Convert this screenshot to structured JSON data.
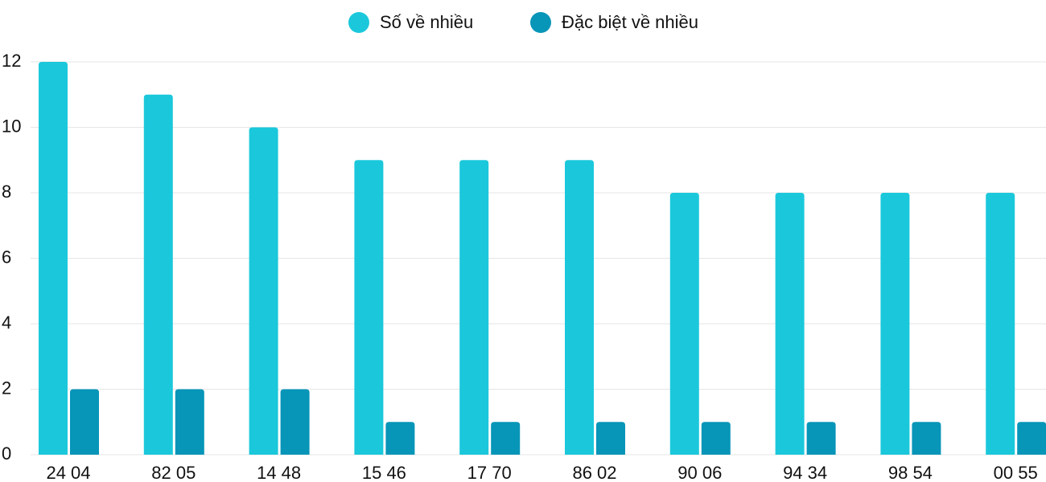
{
  "chart_data": {
    "type": "bar",
    "categories": [
      "24 04",
      "82 05",
      "14 48",
      "15 46",
      "17 70",
      "86 02",
      "90 06",
      "94 34",
      "98 54",
      "00 55"
    ],
    "series": [
      {
        "name": "Số về nhiều",
        "color": "#1bc8db",
        "values": [
          12,
          11,
          10,
          9,
          9,
          9,
          8,
          8,
          8,
          8
        ]
      },
      {
        "name": "Đặc biệt về nhiều",
        "color": "#0795b8",
        "values": [
          2,
          2,
          2,
          1,
          1,
          1,
          1,
          1,
          1,
          1
        ]
      }
    ],
    "ylim": [
      0,
      12
    ],
    "yticks": [
      0,
      2,
      4,
      6,
      8,
      10,
      12
    ],
    "grid": true,
    "legend": "top"
  }
}
